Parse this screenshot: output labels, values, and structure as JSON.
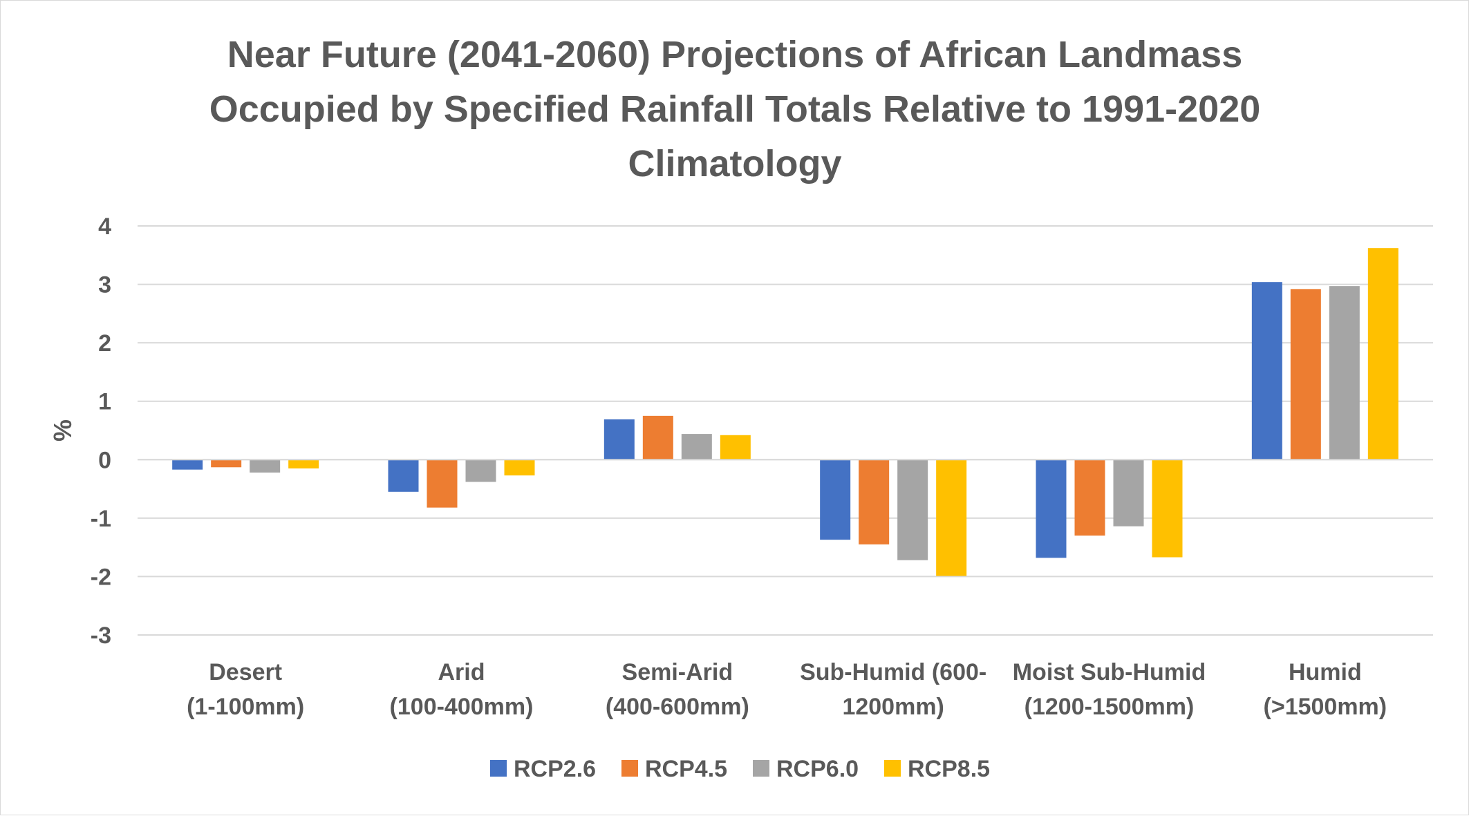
{
  "chart_data": {
    "type": "bar",
    "title_lines": [
      "Near Future (2041-2060) Projections of African Landmass",
      "Occupied by Specified Rainfall Totals Relative to 1991-2020",
      "Climatology"
    ],
    "ylabel": "%",
    "xlabel": "",
    "ylim": [
      -3,
      4
    ],
    "yticks": [
      "4",
      "3",
      "2",
      "1",
      "0",
      "-1",
      "-2",
      "-3"
    ],
    "ytick_values": [
      4,
      3,
      2,
      1,
      0,
      -1,
      -2,
      -3
    ],
    "grid": true,
    "legend_position": "bottom",
    "categories": [
      [
        "Desert",
        "(1-100mm)"
      ],
      [
        "Arid",
        "(100-400mm)"
      ],
      [
        "Semi-Arid",
        "(400-600mm)"
      ],
      [
        "Sub-Humid (600-",
        "1200mm)"
      ],
      [
        "Moist Sub-Humid",
        "(1200-1500mm)"
      ],
      [
        "Humid",
        "(>1500mm)"
      ]
    ],
    "series": [
      {
        "name": "RCP2.6",
        "color": "#4472c4",
        "values": [
          -0.17,
          -0.55,
          0.69,
          -1.37,
          -1.68,
          3.04
        ]
      },
      {
        "name": "RCP4.5",
        "color": "#ed7d31",
        "values": [
          -0.13,
          -0.82,
          0.75,
          -1.45,
          -1.3,
          2.92
        ]
      },
      {
        "name": "RCP6.0",
        "color": "#a5a5a5",
        "values": [
          -0.22,
          -0.38,
          0.44,
          -1.72,
          -1.14,
          2.97
        ]
      },
      {
        "name": "RCP8.5",
        "color": "#ffc000",
        "values": [
          -0.15,
          -0.27,
          0.42,
          -1.99,
          -1.67,
          3.62
        ]
      }
    ]
  }
}
